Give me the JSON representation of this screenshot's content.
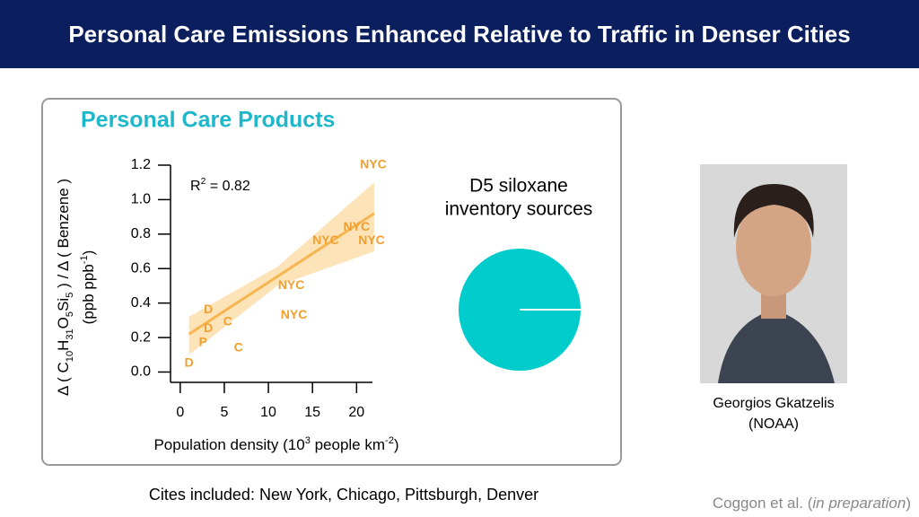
{
  "header": {
    "title": "Personal Care Emissions Enhanced Relative to Traffic in Denser Cities"
  },
  "chart_data": [
    {
      "type": "scatter",
      "title": "Personal Care Products",
      "annotation": [
        {
          "text": "R"
        },
        {
          "text": "2",
          "shift": "sup"
        },
        {
          "text": " = 0.82"
        }
      ],
      "x_label": [
        {
          "text": "Population density (10"
        },
        {
          "text": "3",
          "shift": "sup"
        },
        {
          "text": " people km"
        },
        {
          "text": "-2",
          "shift": "sup"
        },
        {
          "text": ")"
        }
      ],
      "y_label": [
        [
          {
            "text": "Δ ( C"
          },
          {
            "text": "10",
            "shift": "sub"
          },
          {
            "text": "H"
          },
          {
            "text": "31",
            "shift": "sub"
          },
          {
            "text": "O"
          },
          {
            "text": "5",
            "shift": "sub"
          },
          {
            "text": "Si"
          },
          {
            "text": "5",
            "shift": "sub"
          },
          {
            "text": " ) / Δ ( Benzene )"
          }
        ],
        [
          {
            "text": "(ppb ppb"
          },
          {
            "text": "-1",
            "shift": "sup"
          },
          {
            "text": ")"
          }
        ]
      ],
      "x": [
        1.0,
        3.2,
        3.2,
        2.6,
        5.4,
        6.6,
        21.9,
        20.0,
        16.5,
        21.7,
        12.6,
        12.9
      ],
      "y": [
        0.05,
        0.36,
        0.25,
        0.17,
        0.29,
        0.14,
        1.2,
        0.84,
        0.76,
        0.76,
        0.5,
        0.33
      ],
      "point_labels": [
        "D",
        "D",
        "D",
        "P",
        "C",
        "C",
        "NYC",
        "NYC",
        "NYC",
        "NYC",
        "NYC",
        "NYC"
      ],
      "color": "#f0a030",
      "fit": {
        "x": [
          1,
          22
        ],
        "y": [
          0.22,
          0.92
        ],
        "color": "#f5b550"
      },
      "band": {
        "x": [
          1,
          11,
          22
        ],
        "upper": [
          0.32,
          0.61,
          1.1
        ],
        "lower": [
          0.1,
          0.5,
          0.7
        ],
        "color": "#fde3b8"
      },
      "xlim": [
        -1.1,
        21.8
      ],
      "ylim": [
        -0.06,
        1.2
      ],
      "xticks": [
        0,
        5,
        10,
        15,
        20
      ],
      "yticks": [
        {
          "value": 0,
          "label": "0.0"
        },
        {
          "value": 0.2,
          "label": "0.2"
        },
        {
          "value": 0.4,
          "label": "0.4"
        },
        {
          "value": 0.6,
          "label": "0.6"
        },
        {
          "value": 0.8,
          "label": "0.8"
        },
        {
          "value": 1.0,
          "label": "1.0"
        },
        {
          "value": 1.2,
          "label": "1.2"
        }
      ]
    },
    {
      "type": "pie",
      "title": [
        "D5 siloxane",
        "inventory sources"
      ],
      "values": [
        100
      ],
      "colors": [
        "#00cccc"
      ]
    }
  ],
  "photo_caption": [
    "Georgios Gkatzelis",
    "(NOAA)"
  ],
  "footer_note": "Cites included: New York, Chicago, Pittsburgh, Denver",
  "citation": [
    {
      "text": "Coggon et al. ("
    },
    {
      "text": "in preparation",
      "shift": "italic"
    },
    {
      "text": ")"
    }
  ]
}
